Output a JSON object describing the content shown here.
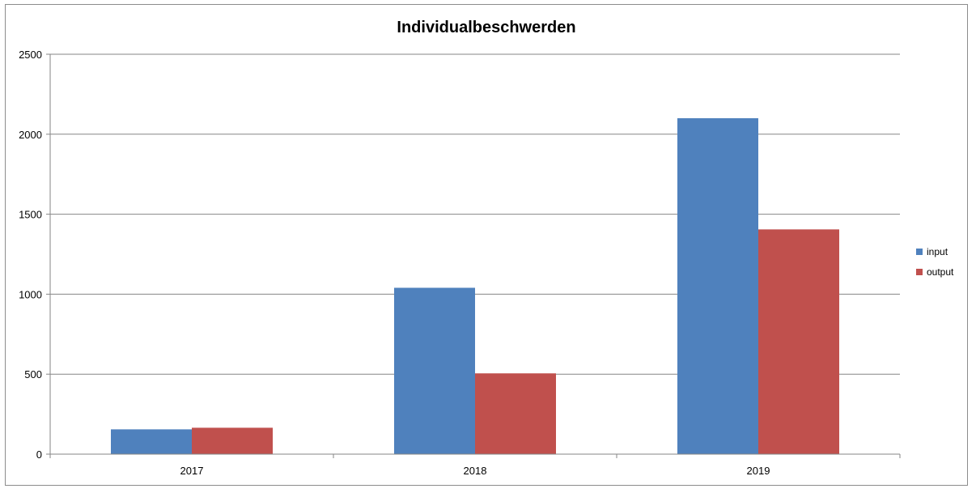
{
  "chart_data": {
    "type": "bar",
    "title": "Individualbeschwerden",
    "categories": [
      "2017",
      "2018",
      "2019"
    ],
    "series": [
      {
        "name": "input",
        "color": "#4f81bd",
        "values": [
          155,
          1040,
          2100
        ]
      },
      {
        "name": "output",
        "color": "#c0504d",
        "values": [
          165,
          505,
          1405
        ]
      }
    ],
    "ylim": [
      0,
      2500
    ],
    "yticks": [
      0,
      500,
      1000,
      1500,
      2000,
      2500
    ],
    "grid": true,
    "legend": "right",
    "axis_color": "#868686",
    "grid_color": "#868686"
  }
}
